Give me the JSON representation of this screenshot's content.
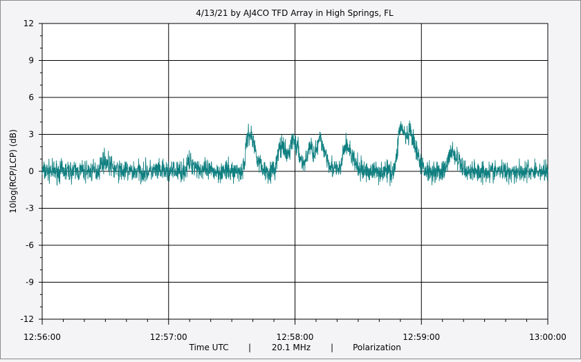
{
  "chart_data": {
    "type": "line",
    "title": "4/13/21  by  AJ4CO TFD Array  in  High Springs, FL",
    "ylabel": "10log(RCP/LCP) (dB)",
    "xlabel_parts": [
      "Time UTC",
      "|",
      "20.1 MHz",
      "|",
      "Polarization"
    ],
    "xlim_seconds_since_start": [
      0,
      240
    ],
    "ylim": [
      -12,
      12
    ],
    "y_ticks": [
      "12",
      "9",
      "6",
      "3",
      "0",
      "-3",
      "-6",
      "-9",
      "-12"
    ],
    "x_ticks": [
      "12:56:00",
      "12:57:00",
      "12:58:00",
      "12:59:00",
      "13:00:00"
    ],
    "grid": true,
    "series_color": "#0f7f80",
    "series": [
      {
        "name": "",
        "baseline_db": 0.0,
        "noise_amplitude_db": 0.8,
        "burst_peaks": [
          {
            "time": "12:56:29",
            "value": 1.8
          },
          {
            "time": "12:57:10",
            "value": 1.6
          },
          {
            "time": "12:57:38",
            "value": 4.0
          },
          {
            "time": "12:57:53",
            "value": 2.9
          },
          {
            "time": "12:57:59",
            "value": 3.2
          },
          {
            "time": "12:58:07",
            "value": 2.8
          },
          {
            "time": "12:58:12",
            "value": 2.9
          },
          {
            "time": "12:58:24",
            "value": 3.0
          },
          {
            "time": "12:58:50",
            "value": 4.5
          },
          {
            "time": "12:58:55",
            "value": 3.0
          },
          {
            "time": "12:59:14",
            "value": 2.5
          }
        ]
      }
    ]
  }
}
